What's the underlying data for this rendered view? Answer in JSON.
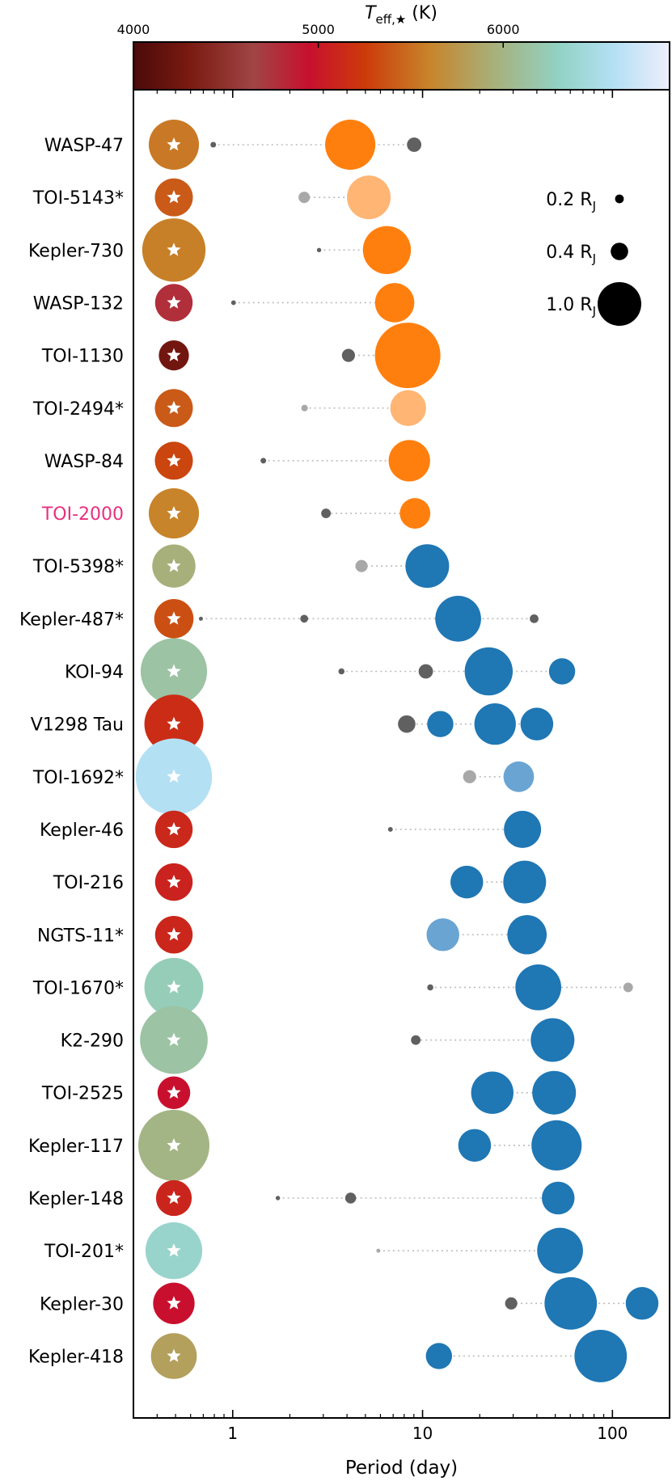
{
  "chart_data": {
    "type": "scatter",
    "title": "",
    "xlabel": "Period (day)",
    "ylabel": "",
    "xscale": "log",
    "xlim": [
      0.3,
      200
    ],
    "xticks": [
      {
        "value": 1,
        "label": "1"
      },
      {
        "value": 10,
        "label": "10"
      },
      {
        "value": 100,
        "label": "100"
      }
    ],
    "colorbar": {
      "label_main": "T",
      "label_sub": "eff,★",
      "label_unit": " (K)",
      "range": [
        4000,
        6900
      ],
      "ticks": [
        {
          "value": 4000,
          "label": "4000"
        },
        {
          "value": 5000,
          "label": "5000"
        },
        {
          "value": 6000,
          "label": "6000"
        }
      ],
      "stops": [
        {
          "t": 4000,
          "color": "#4a0a0a"
        },
        {
          "t": 4300,
          "color": "#7a1a10"
        },
        {
          "t": 4650,
          "color": "#a04545"
        },
        {
          "t": 4950,
          "color": "#c8102e"
        },
        {
          "t": 5250,
          "color": "#cc3a0a"
        },
        {
          "t": 5600,
          "color": "#c8842a"
        },
        {
          "t": 5950,
          "color": "#a7b07a"
        },
        {
          "t": 6300,
          "color": "#92d2c4"
        },
        {
          "t": 6600,
          "color": "#b4e0f4"
        },
        {
          "t": 6900,
          "color": "#eeeefc"
        }
      ]
    },
    "size_legend": [
      {
        "label": "0.2",
        "unit": "R",
        "sub": "J",
        "radius_rj": 0.2
      },
      {
        "label": "0.4",
        "unit": "R",
        "sub": "J",
        "radius_rj": 0.4
      },
      {
        "label": "1.0",
        "unit": "R",
        "sub": "J",
        "radius_rj": 1.0
      }
    ],
    "colors": {
      "hot_jupiter": "#ff7f0e",
      "hot_jupiter_faded": "#ffb574",
      "warm_jupiter": "#1f77b4",
      "warm_jupiter_faded": "#6aa4d2",
      "small_planet": "#606060",
      "small_planet_faded": "#a8a8a8",
      "connector": "#bbbbbb",
      "highlight_label": "#e8307e"
    },
    "systems": [
      {
        "name": "WASP-47",
        "teff": 5550,
        "rstar": 1.15,
        "highlight": false,
        "planets": [
          {
            "p": 0.79,
            "r": 0.13,
            "kind": "small"
          },
          {
            "p": 4.16,
            "r": 1.15,
            "kind": "hot"
          },
          {
            "p": 9.03,
            "r": 0.33,
            "kind": "small"
          }
        ]
      },
      {
        "name": "TOI-5143*",
        "teff": 5400,
        "rstar": 0.87,
        "highlight": false,
        "planets": [
          {
            "p": 2.38,
            "r": 0.26,
            "kind": "small",
            "faded": true
          },
          {
            "p": 5.21,
            "r": 1.0,
            "kind": "hot",
            "faded": true
          }
        ]
      },
      {
        "name": "Kepler-730",
        "teff": 5580,
        "rstar": 1.45,
        "highlight": false,
        "planets": [
          {
            "p": 2.85,
            "r": 0.1,
            "kind": "small"
          },
          {
            "p": 6.49,
            "r": 1.1,
            "kind": "hot"
          }
        ]
      },
      {
        "name": "WASP-132",
        "teff": 4780,
        "rstar": 0.86,
        "highlight": false,
        "planets": [
          {
            "p": 1.01,
            "r": 0.11,
            "kind": "small"
          },
          {
            "p": 7.13,
            "r": 0.9,
            "kind": "hot"
          }
        ]
      },
      {
        "name": "TOI-1130",
        "teff": 4250,
        "rstar": 0.69,
        "highlight": false,
        "planets": [
          {
            "p": 4.07,
            "r": 0.3,
            "kind": "small"
          },
          {
            "p": 8.35,
            "r": 1.5,
            "kind": "hot"
          }
        ]
      },
      {
        "name": "TOI-2494*",
        "teff": 5400,
        "rstar": 0.87,
        "highlight": false,
        "planets": [
          {
            "p": 2.39,
            "r": 0.15,
            "kind": "small",
            "faded": true
          },
          {
            "p": 8.4,
            "r": 0.82,
            "kind": "hot",
            "faded": true
          }
        ]
      },
      {
        "name": "WASP-84",
        "teff": 5300,
        "rstar": 0.87,
        "highlight": false,
        "planets": [
          {
            "p": 1.45,
            "r": 0.13,
            "kind": "small"
          },
          {
            "p": 8.52,
            "r": 0.95,
            "kind": "hot"
          }
        ]
      },
      {
        "name": "TOI-2000",
        "teff": 5600,
        "rstar": 1.15,
        "highlight": true,
        "planets": [
          {
            "p": 3.1,
            "r": 0.22,
            "kind": "small"
          },
          {
            "p": 9.13,
            "r": 0.7,
            "kind": "hot"
          }
        ]
      },
      {
        "name": "TOI-5398*",
        "teff": 5950,
        "rstar": 0.99,
        "highlight": false,
        "planets": [
          {
            "p": 4.77,
            "r": 0.28,
            "kind": "small",
            "faded": true
          },
          {
            "p": 10.59,
            "r": 1.0,
            "kind": "warm"
          }
        ]
      },
      {
        "name": "Kepler-487*",
        "teff": 5350,
        "rstar": 0.9,
        "highlight": false,
        "planets": [
          {
            "p": 0.68,
            "r": 0.08,
            "kind": "small"
          },
          {
            "p": 2.38,
            "r": 0.18,
            "kind": "small"
          },
          {
            "p": 15.4,
            "r": 1.05,
            "kind": "warm"
          },
          {
            "p": 38.7,
            "r": 0.2,
            "kind": "small"
          }
        ]
      },
      {
        "name": "KOI-94",
        "teff": 6150,
        "rstar": 1.52,
        "highlight": false,
        "planets": [
          {
            "p": 3.74,
            "r": 0.14,
            "kind": "small"
          },
          {
            "p": 10.4,
            "r": 0.33,
            "kind": "small"
          },
          {
            "p": 22.3,
            "r": 1.1,
            "kind": "warm"
          },
          {
            "p": 54.3,
            "r": 0.6,
            "kind": "warm"
          }
        ]
      },
      {
        "name": "V1298 Tau",
        "teff": 5150,
        "rstar": 1.35,
        "highlight": false,
        "planets": [
          {
            "p": 8.25,
            "r": 0.4,
            "kind": "small"
          },
          {
            "p": 12.4,
            "r": 0.6,
            "kind": "warm"
          },
          {
            "p": 24.1,
            "r": 0.95,
            "kind": "warm"
          },
          {
            "p": 40.0,
            "r": 0.75,
            "kind": "warm"
          }
        ]
      },
      {
        "name": "TOI-1692*",
        "teff": 6600,
        "rstar": 1.75,
        "highlight": false,
        "planets": [
          {
            "p": 17.7,
            "r": 0.3,
            "kind": "small",
            "faded": true
          },
          {
            "p": 32.1,
            "r": 0.7,
            "kind": "warm",
            "faded": true
          }
        ]
      },
      {
        "name": "Kepler-46",
        "teff": 5120,
        "rstar": 0.86,
        "highlight": false,
        "planets": [
          {
            "p": 6.77,
            "r": 0.11,
            "kind": "small"
          },
          {
            "p": 33.6,
            "r": 0.85,
            "kind": "warm"
          }
        ]
      },
      {
        "name": "TOI-216",
        "teff": 5080,
        "rstar": 0.86,
        "highlight": false,
        "planets": [
          {
            "p": 17.1,
            "r": 0.75,
            "kind": "warm"
          },
          {
            "p": 34.5,
            "r": 0.98,
            "kind": "warm"
          }
        ]
      },
      {
        "name": "NGTS-11*",
        "teff": 5110,
        "rstar": 0.86,
        "highlight": false,
        "planets": [
          {
            "p": 12.8,
            "r": 0.75,
            "kind": "warm",
            "faded": true
          },
          {
            "p": 35.5,
            "r": 0.9,
            "kind": "warm"
          }
        ]
      },
      {
        "name": "TOI-1670*",
        "teff": 6250,
        "rstar": 1.35,
        "highlight": false,
        "planets": [
          {
            "p": 10.98,
            "r": 0.14,
            "kind": "small"
          },
          {
            "p": 40.7,
            "r": 1.05,
            "kind": "warm"
          },
          {
            "p": 121.0,
            "r": 0.22,
            "kind": "small",
            "faded": true
          }
        ]
      },
      {
        "name": "K2-290",
        "teff": 6150,
        "rstar": 1.55,
        "highlight": false,
        "planets": [
          {
            "p": 9.21,
            "r": 0.22,
            "kind": "small"
          },
          {
            "p": 48.4,
            "r": 1.0,
            "kind": "warm"
          }
        ]
      },
      {
        "name": "TOI-2525",
        "teff": 4950,
        "rstar": 0.75,
        "highlight": false,
        "planets": [
          {
            "p": 23.3,
            "r": 0.97,
            "kind": "warm"
          },
          {
            "p": 49.3,
            "r": 1.0,
            "kind": "warm"
          }
        ]
      },
      {
        "name": "Kepler-117",
        "teff": 6000,
        "rstar": 1.63,
        "highlight": false,
        "planets": [
          {
            "p": 18.8,
            "r": 0.75,
            "kind": "warm"
          },
          {
            "p": 50.8,
            "r": 1.15,
            "kind": "warm"
          }
        ]
      },
      {
        "name": "Kepler-148",
        "teff": 5100,
        "rstar": 0.82,
        "highlight": false,
        "planets": [
          {
            "p": 1.73,
            "r": 0.1,
            "kind": "small"
          },
          {
            "p": 4.18,
            "r": 0.25,
            "kind": "small"
          },
          {
            "p": 51.8,
            "r": 0.75,
            "kind": "warm"
          }
        ]
      },
      {
        "name": "TOI-201*",
        "teff": 6350,
        "rstar": 1.3,
        "highlight": false,
        "planets": [
          {
            "p": 5.85,
            "r": 0.08,
            "kind": "small",
            "faded": true
          },
          {
            "p": 53.0,
            "r": 1.05,
            "kind": "warm"
          }
        ]
      },
      {
        "name": "Kepler-30",
        "teff": 4950,
        "rstar": 0.95,
        "highlight": false,
        "planets": [
          {
            "p": 29.3,
            "r": 0.28,
            "kind": "small"
          },
          {
            "p": 60.3,
            "r": 1.2,
            "kind": "warm"
          },
          {
            "p": 143.3,
            "r": 0.75,
            "kind": "warm"
          }
        ]
      },
      {
        "name": "Kepler-418",
        "teff": 5820,
        "rstar": 1.05,
        "highlight": false,
        "planets": [
          {
            "p": 12.2,
            "r": 0.6,
            "kind": "warm"
          },
          {
            "p": 86.7,
            "r": 1.2,
            "kind": "warm"
          }
        ]
      }
    ]
  }
}
